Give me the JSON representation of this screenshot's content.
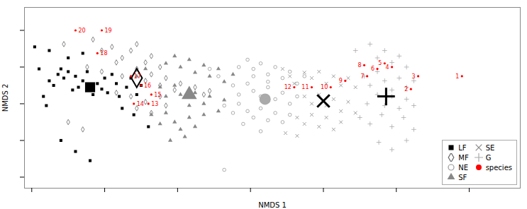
{
  "chart_data": {
    "type": "scatter",
    "xlabel": "NMDS 1",
    "ylabel": "NMDS 2",
    "xlim": [
      -1.55,
      1.85
    ],
    "ylim": [
      -0.92,
      1.05
    ],
    "xticks": [
      -1.5,
      -1,
      -0.5,
      0,
      0.5,
      1,
      1.5
    ],
    "yticks": [
      -0.8,
      -0.4,
      0,
      0.4,
      0.8
    ],
    "tick_labels": false,
    "grid": false,
    "legend": "lower right",
    "series": [
      {
        "name": "LF",
        "color": "#000000",
        "marker": "square",
        "values": [
          [
            -1.45,
            0.38
          ],
          [
            -1.42,
            0.08
          ],
          [
            -1.4,
            -0.02
          ],
          [
            -1.38,
            0.25
          ],
          [
            -1.35,
            0.2
          ],
          [
            -1.32,
            0.32
          ],
          [
            -1.3,
            0.38
          ],
          [
            -1.28,
            0.28
          ],
          [
            -1.25,
            0.35
          ],
          [
            -1.22,
            0.15
          ],
          [
            -1.2,
            0.3
          ],
          [
            -1.18,
            0.18
          ],
          [
            -1.15,
            0.25
          ],
          [
            -1.12,
            0.35
          ],
          [
            -1.1,
            0.2
          ],
          [
            -1.08,
            0.1
          ],
          [
            -1.05,
            0.22
          ],
          [
            -1.02,
            0.16
          ],
          [
            -1.0,
            0.28
          ],
          [
            -0.98,
            0.12
          ],
          [
            -0.95,
            0.32
          ],
          [
            -0.92,
            0.22
          ],
          [
            -0.9,
            0.08
          ],
          [
            -0.88,
            -0.05
          ],
          [
            -0.85,
            0.18
          ],
          [
            -0.82,
            0.28
          ],
          [
            -0.8,
            -0.12
          ],
          [
            -0.78,
            0.1
          ],
          [
            -0.75,
            0.2
          ],
          [
            -0.7,
            -0.25
          ],
          [
            -1.48,
            0.62
          ],
          [
            -1.38,
            0.58
          ],
          [
            -1.25,
            0.5
          ],
          [
            -1.15,
            0.55
          ],
          [
            -1.3,
            -0.4
          ],
          [
            -1.2,
            -0.52
          ],
          [
            -1.1,
            -0.62
          ]
        ],
        "centroid": {
          "x": -1.1,
          "y": 0.18,
          "color": "#000000",
          "marker": "square"
        }
      },
      {
        "name": "MF",
        "color": "#666666",
        "marker": "diamond_open",
        "values": [
          [
            -1.28,
            0.65
          ],
          [
            -1.08,
            0.7
          ],
          [
            -1.02,
            0.58
          ],
          [
            -0.95,
            0.62
          ],
          [
            -0.88,
            0.5
          ],
          [
            -0.82,
            0.58
          ],
          [
            -0.78,
            0.65
          ],
          [
            -0.72,
            0.45
          ],
          [
            -0.68,
            0.52
          ],
          [
            -0.62,
            0.4
          ],
          [
            -1.12,
            0.4
          ],
          [
            -1.02,
            0.35
          ],
          [
            -0.92,
            0.45
          ],
          [
            -0.88,
            0.3
          ],
          [
            -0.78,
            0.38
          ],
          [
            -0.72,
            0.25
          ],
          [
            -0.68,
            0.32
          ],
          [
            -0.62,
            0.2
          ],
          [
            -0.58,
            0.28
          ],
          [
            -0.52,
            0.15
          ],
          [
            -0.48,
            0.22
          ],
          [
            -0.42,
            0.12
          ],
          [
            -0.38,
            0.18
          ],
          [
            -0.32,
            0.1
          ],
          [
            -0.28,
            0.14
          ],
          [
            -0.92,
            0.12
          ],
          [
            -0.82,
            0.08
          ],
          [
            -0.78,
            -0.05
          ],
          [
            -0.72,
            0.02
          ],
          [
            -0.68,
            -0.1
          ],
          [
            -0.62,
            0.08
          ],
          [
            -0.58,
            -0.02
          ],
          [
            -1.25,
            -0.2
          ],
          [
            -1.15,
            -0.28
          ]
        ],
        "centroid": {
          "x": -0.78,
          "y": 0.28,
          "color": "#000000",
          "marker": "diamond_open"
        }
      },
      {
        "name": "NE",
        "color": "#999999",
        "marker": "circle_open",
        "values": [
          [
            -0.08,
            0.4
          ],
          [
            -0.02,
            0.48
          ],
          [
            0.02,
            0.38
          ],
          [
            0.07,
            0.44
          ],
          [
            0.12,
            0.32
          ],
          [
            0.17,
            0.4
          ],
          [
            0.22,
            0.28
          ],
          [
            0.27,
            0.35
          ],
          [
            0.32,
            0.22
          ],
          [
            0.37,
            0.3
          ],
          [
            -0.12,
            0.2
          ],
          [
            -0.08,
            0.1
          ],
          [
            -0.02,
            0.22
          ],
          [
            0.02,
            0.14
          ],
          [
            0.07,
            0.08
          ],
          [
            0.12,
            0.18
          ],
          [
            0.17,
            0.05
          ],
          [
            0.22,
            0.12
          ],
          [
            0.27,
            0.0
          ],
          [
            0.32,
            0.08
          ],
          [
            -0.18,
            -0.02
          ],
          [
            -0.12,
            -0.1
          ],
          [
            -0.08,
            0.0
          ],
          [
            -0.02,
            -0.08
          ],
          [
            0.02,
            -0.15
          ],
          [
            0.07,
            -0.05
          ],
          [
            0.12,
            -0.18
          ],
          [
            0.17,
            -0.1
          ],
          [
            0.22,
            -0.2
          ],
          [
            0.27,
            -0.12
          ],
          [
            -0.22,
            0.3
          ],
          [
            -0.28,
            0.38
          ],
          [
            0.02,
            0.3
          ],
          [
            0.12,
            0.24
          ],
          [
            -0.05,
            -0.22
          ],
          [
            0.07,
            -0.3
          ],
          [
            -0.18,
            -0.72
          ]
        ],
        "centroid": {
          "x": 0.1,
          "y": 0.05,
          "color": "#aaaaaa",
          "marker": "circle"
        }
      },
      {
        "name": "SF",
        "color": "#888888",
        "marker": "triangle",
        "values": [
          [
            -0.58,
            0.44
          ],
          [
            -0.52,
            0.52
          ],
          [
            -0.48,
            0.4
          ],
          [
            -0.42,
            0.48
          ],
          [
            -0.38,
            0.34
          ],
          [
            -0.32,
            0.42
          ],
          [
            -0.28,
            0.3
          ],
          [
            -0.22,
            0.38
          ],
          [
            -0.18,
            0.24
          ],
          [
            -0.12,
            0.32
          ],
          [
            -0.62,
            0.18
          ],
          [
            -0.58,
            0.08
          ],
          [
            -0.52,
            0.2
          ],
          [
            -0.48,
            0.1
          ],
          [
            -0.42,
            -0.02
          ],
          [
            -0.38,
            0.12
          ],
          [
            -0.32,
            0.0
          ],
          [
            -0.28,
            0.08
          ],
          [
            -0.22,
            -0.08
          ],
          [
            -0.18,
            0.04
          ],
          [
            -0.68,
            -0.12
          ],
          [
            -0.62,
            -0.22
          ],
          [
            -0.58,
            -0.1
          ],
          [
            -0.52,
            -0.2
          ],
          [
            -0.48,
            -0.28
          ],
          [
            -0.42,
            -0.15
          ],
          [
            -0.38,
            -0.25
          ],
          [
            -0.32,
            -0.12
          ],
          [
            -0.78,
            0.3
          ],
          [
            -0.72,
            0.38
          ],
          [
            -0.55,
            -0.4
          ],
          [
            -0.45,
            -0.36
          ]
        ],
        "centroid": {
          "x": -0.42,
          "y": 0.1,
          "color": "#888888",
          "marker": "triangle"
        }
      },
      {
        "name": "SE",
        "color": "#888888",
        "marker": "x",
        "values": [
          [
            0.37,
            0.34
          ],
          [
            0.42,
            0.28
          ],
          [
            0.47,
            0.35
          ],
          [
            0.52,
            0.22
          ],
          [
            0.57,
            0.3
          ],
          [
            0.62,
            0.2
          ],
          [
            0.67,
            0.28
          ],
          [
            0.72,
            0.18
          ],
          [
            0.37,
            0.08
          ],
          [
            0.42,
            0.0
          ],
          [
            0.47,
            0.1
          ],
          [
            0.52,
            -0.02
          ],
          [
            0.57,
            0.05
          ],
          [
            0.62,
            -0.08
          ],
          [
            0.67,
            0.02
          ],
          [
            0.72,
            -0.1
          ],
          [
            0.32,
            -0.15
          ],
          [
            0.37,
            -0.22
          ],
          [
            0.42,
            -0.12
          ],
          [
            0.47,
            -0.25
          ],
          [
            0.52,
            -0.15
          ],
          [
            0.57,
            -0.28
          ],
          [
            0.62,
            -0.2
          ],
          [
            0.22,
            0.38
          ],
          [
            0.27,
            0.3
          ],
          [
            0.3,
            0.22
          ],
          [
            0.24,
            -0.32
          ],
          [
            0.32,
            -0.35
          ]
        ],
        "centroid": {
          "x": 0.5,
          "y": 0.03,
          "color": "#000000",
          "marker": "x"
        }
      },
      {
        "name": "G",
        "color": "#aaaaaa",
        "marker": "plus",
        "values": [
          [
            0.72,
            0.58
          ],
          [
            0.82,
            0.65
          ],
          [
            0.87,
            0.5
          ],
          [
            0.92,
            0.58
          ],
          [
            0.97,
            0.45
          ],
          [
            1.02,
            0.52
          ],
          [
            1.07,
            0.4
          ],
          [
            0.78,
            0.3
          ],
          [
            0.82,
            0.2
          ],
          [
            0.87,
            0.35
          ],
          [
            0.92,
            0.25
          ],
          [
            0.97,
            0.15
          ],
          [
            1.02,
            0.28
          ],
          [
            1.07,
            0.18
          ],
          [
            1.12,
            0.25
          ],
          [
            0.8,
            0.0
          ],
          [
            0.87,
            0.1
          ],
          [
            0.92,
            -0.02
          ],
          [
            0.97,
            0.08
          ],
          [
            1.02,
            -0.05
          ],
          [
            1.07,
            0.05
          ],
          [
            1.12,
            -0.02
          ],
          [
            0.75,
            -0.15
          ],
          [
            0.82,
            -0.22
          ],
          [
            0.9,
            -0.12
          ],
          [
            0.97,
            -0.25
          ],
          [
            1.05,
            -0.15
          ],
          [
            1.12,
            -0.28
          ],
          [
            0.88,
            -0.42
          ],
          [
            0.97,
            -0.5
          ],
          [
            1.07,
            -0.4
          ]
        ],
        "centroid": {
          "x": 0.93,
          "y": 0.08,
          "color": "#000000",
          "marker": "plus"
        }
      },
      {
        "name": "species",
        "color": "#ff0000",
        "marker": "circle",
        "values": [
          [
            -1.2,
            0.8
          ],
          [
            -1.02,
            0.8
          ],
          [
            -1.05,
            0.55
          ],
          [
            -0.82,
            0.3
          ],
          [
            -0.75,
            0.2
          ],
          [
            -0.68,
            0.1
          ],
          [
            -0.8,
            0.0
          ],
          [
            -0.7,
            0.0
          ],
          [
            0.3,
            0.18
          ],
          [
            0.42,
            0.18
          ],
          [
            0.55,
            0.18
          ],
          [
            0.65,
            0.25
          ],
          [
            0.78,
            0.42
          ],
          [
            0.8,
            0.3
          ],
          [
            0.87,
            0.38
          ],
          [
            0.92,
            0.44
          ],
          [
            0.97,
            0.4
          ],
          [
            1.15,
            0.3
          ],
          [
            1.1,
            0.16
          ],
          [
            1.45,
            0.3
          ]
        ],
        "labels": [
          "20",
          "19",
          "18",
          "17",
          "16",
          "15",
          "14",
          "13",
          "12",
          "11",
          "10",
          "9",
          "8",
          "7",
          "6",
          "5",
          "4",
          "3",
          "2",
          "1"
        ]
      }
    ]
  }
}
